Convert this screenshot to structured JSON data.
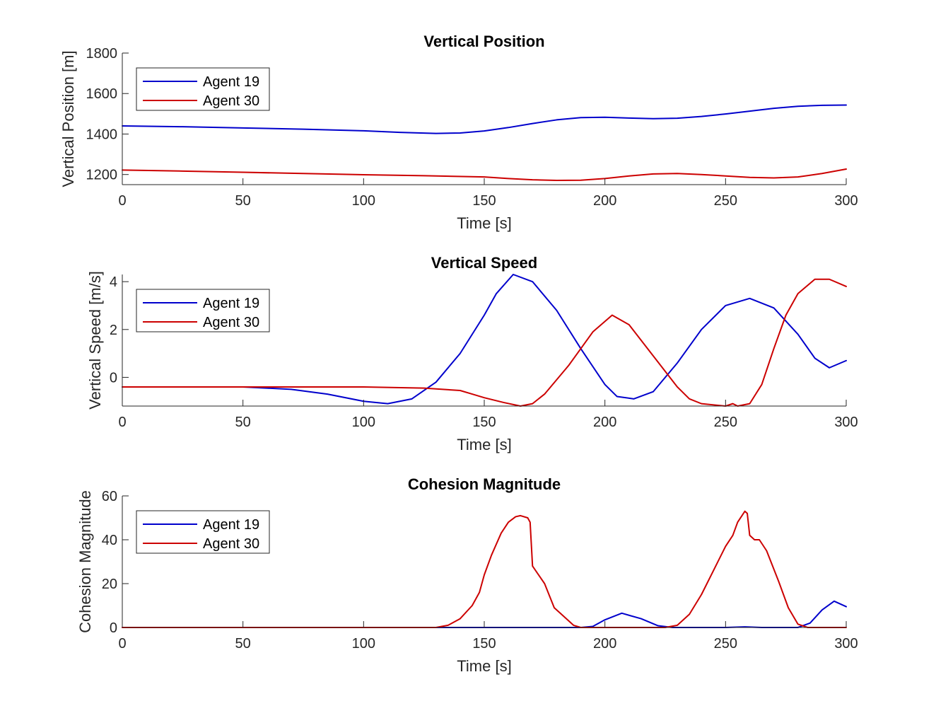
{
  "chart_data": [
    {
      "type": "line",
      "title": "Vertical Position",
      "xlabel": "Time [s]",
      "ylabel": "Vertical Position [m]",
      "xlim": [
        0,
        300
      ],
      "ylim": [
        1150,
        1800
      ],
      "xticks": [
        0,
        50,
        100,
        150,
        200,
        250,
        300
      ],
      "yticks": [
        1200,
        1400,
        1600,
        1800
      ],
      "legend": "top-left",
      "series": [
        {
          "name": "Agent 19",
          "color": "#0000CC",
          "x": [
            0,
            25,
            50,
            75,
            100,
            115,
            130,
            140,
            150,
            160,
            170,
            180,
            190,
            200,
            210,
            220,
            230,
            240,
            250,
            260,
            270,
            280,
            290,
            300
          ],
          "y": [
            1440,
            1436,
            1430,
            1424,
            1416,
            1408,
            1403,
            1405,
            1415,
            1432,
            1452,
            1470,
            1481,
            1483,
            1479,
            1476,
            1478,
            1487,
            1499,
            1513,
            1527,
            1537,
            1542,
            1543
          ]
        },
        {
          "name": "Agent 30",
          "color": "#CC0000",
          "x": [
            0,
            25,
            50,
            75,
            100,
            125,
            150,
            160,
            170,
            180,
            190,
            200,
            210,
            220,
            230,
            240,
            250,
            260,
            270,
            280,
            290,
            300
          ],
          "y": [
            1222,
            1217,
            1211,
            1205,
            1199,
            1194,
            1188,
            1180,
            1174,
            1171,
            1172,
            1180,
            1193,
            1203,
            1205,
            1200,
            1193,
            1186,
            1183,
            1188,
            1205,
            1227
          ]
        }
      ]
    },
    {
      "type": "line",
      "title": "Vertical Speed",
      "xlabel": "Time [s]",
      "ylabel": "Vertical Speed [m/s]",
      "xlim": [
        0,
        300
      ],
      "ylim": [
        -1.2,
        4.3
      ],
      "xticks": [
        0,
        50,
        100,
        150,
        200,
        250,
        300
      ],
      "yticks": [
        0,
        2,
        4
      ],
      "legend": "top-left",
      "series": [
        {
          "name": "Agent 19",
          "color": "#0000CC",
          "x": [
            0,
            25,
            50,
            70,
            85,
            100,
            110,
            120,
            130,
            140,
            150,
            155,
            162,
            170,
            180,
            190,
            200,
            205,
            212,
            220,
            230,
            240,
            250,
            260,
            270,
            280,
            287,
            293,
            300
          ],
          "y": [
            -0.4,
            -0.4,
            -0.4,
            -0.5,
            -0.7,
            -1.0,
            -1.1,
            -0.9,
            -0.2,
            1.0,
            2.6,
            3.5,
            4.3,
            4.0,
            2.8,
            1.2,
            -0.3,
            -0.8,
            -0.9,
            -0.6,
            0.6,
            2.0,
            3.0,
            3.3,
            2.9,
            1.8,
            0.8,
            0.4,
            0.7
          ]
        },
        {
          "name": "Agent 30",
          "color": "#CC0000",
          "x": [
            0,
            50,
            100,
            125,
            140,
            145,
            150,
            158,
            165,
            170,
            175,
            185,
            195,
            203,
            210,
            220,
            230,
            235,
            240,
            245,
            250,
            253,
            255,
            260,
            265,
            270,
            275,
            280,
            287,
            293,
            300
          ],
          "y": [
            -0.4,
            -0.4,
            -0.4,
            -0.45,
            -0.55,
            -0.7,
            -0.85,
            -1.05,
            -1.2,
            -1.1,
            -0.7,
            0.5,
            1.9,
            2.6,
            2.2,
            0.9,
            -0.4,
            -0.9,
            -1.1,
            -1.15,
            -1.2,
            -1.1,
            -1.2,
            -1.1,
            -0.3,
            1.2,
            2.6,
            3.5,
            4.1,
            4.1,
            3.8
          ]
        }
      ]
    },
    {
      "type": "line",
      "title": "Cohesion Magnitude",
      "xlabel": "Time [s]",
      "ylabel": "Cohesion Magnitude",
      "xlim": [
        0,
        300
      ],
      "ylim": [
        0,
        60
      ],
      "xticks": [
        0,
        50,
        100,
        150,
        200,
        250,
        300
      ],
      "yticks": [
        0,
        20,
        40,
        60
      ],
      "legend": "top-left",
      "series": [
        {
          "name": "Agent 19",
          "color": "#0000CC",
          "x": [
            0,
            190,
            195,
            200,
            207,
            215,
            222,
            228,
            250,
            258,
            265,
            280,
            285,
            290,
            295,
            300
          ],
          "y": [
            0,
            0,
            0.5,
            3.5,
            6.5,
            4.0,
            0.8,
            0,
            0,
            0.3,
            0,
            0,
            2,
            8,
            12,
            9.5
          ]
        },
        {
          "name": "Agent 30",
          "color": "#CC0000",
          "x": [
            0,
            130,
            135,
            140,
            145,
            148,
            150,
            153,
            157,
            160,
            163,
            165,
            168,
            169,
            170,
            175,
            179,
            182,
            187,
            190,
            195,
            200,
            225,
            230,
            235,
            240,
            245,
            250,
            253,
            255,
            258,
            259,
            260,
            262,
            264,
            267,
            272,
            276,
            280,
            284,
            290,
            300
          ],
          "y": [
            0,
            0,
            1,
            4,
            10,
            16,
            24,
            33,
            43,
            48,
            50.5,
            51,
            50,
            48,
            28,
            20,
            9,
            6,
            1,
            0,
            0,
            0,
            0,
            1,
            6,
            15,
            26,
            37,
            42,
            48,
            53,
            52,
            42,
            40,
            40,
            35,
            21,
            9,
            1.5,
            0,
            0,
            0
          ]
        }
      ]
    }
  ]
}
